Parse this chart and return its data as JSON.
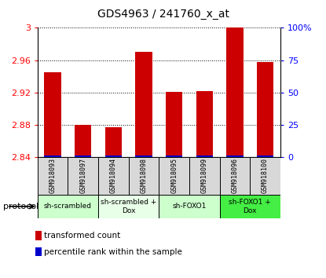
{
  "title": "GDS4963 / 241760_x_at",
  "samples": [
    "GSM918093",
    "GSM918097",
    "GSM918094",
    "GSM918098",
    "GSM918095",
    "GSM918099",
    "GSM918096",
    "GSM918100"
  ],
  "transformed_counts": [
    2.945,
    2.88,
    2.877,
    2.97,
    2.921,
    2.922,
    3.0,
    2.958
  ],
  "ylim": [
    2.84,
    3.0
  ],
  "yticks_left": [
    2.84,
    2.88,
    2.92,
    2.96,
    3.0
  ],
  "ytick_labels_left": [
    "2.84",
    "2.88",
    "2.92",
    "2.96",
    "3"
  ],
  "yticks_right": [
    0,
    25,
    50,
    75,
    100
  ],
  "ytick_labels_right": [
    "0",
    "25",
    "50",
    "75",
    "100%"
  ],
  "bar_color": "#cc0000",
  "percentile_color": "#0000cc",
  "protocol_groups": [
    {
      "label": "sh-scrambled",
      "start": 0,
      "end": 2,
      "color": "#ccffcc"
    },
    {
      "label": "sh-scrambled +\nDox",
      "start": 2,
      "end": 4,
      "color": "#e8ffe8"
    },
    {
      "label": "sh-FOXO1",
      "start": 4,
      "end": 6,
      "color": "#ccffcc"
    },
    {
      "label": "sh-FOXO1 +\nDox",
      "start": 6,
      "end": 8,
      "color": "#44ee44"
    }
  ],
  "legend_red_label": "transformed count",
  "legend_blue_label": "percentile rank within the sample",
  "protocol_label": "protocol",
  "tick_label_color_left": "#cc0000",
  "tick_label_color_right": "#0000cc",
  "sample_bg_color": "#d8d8d8"
}
